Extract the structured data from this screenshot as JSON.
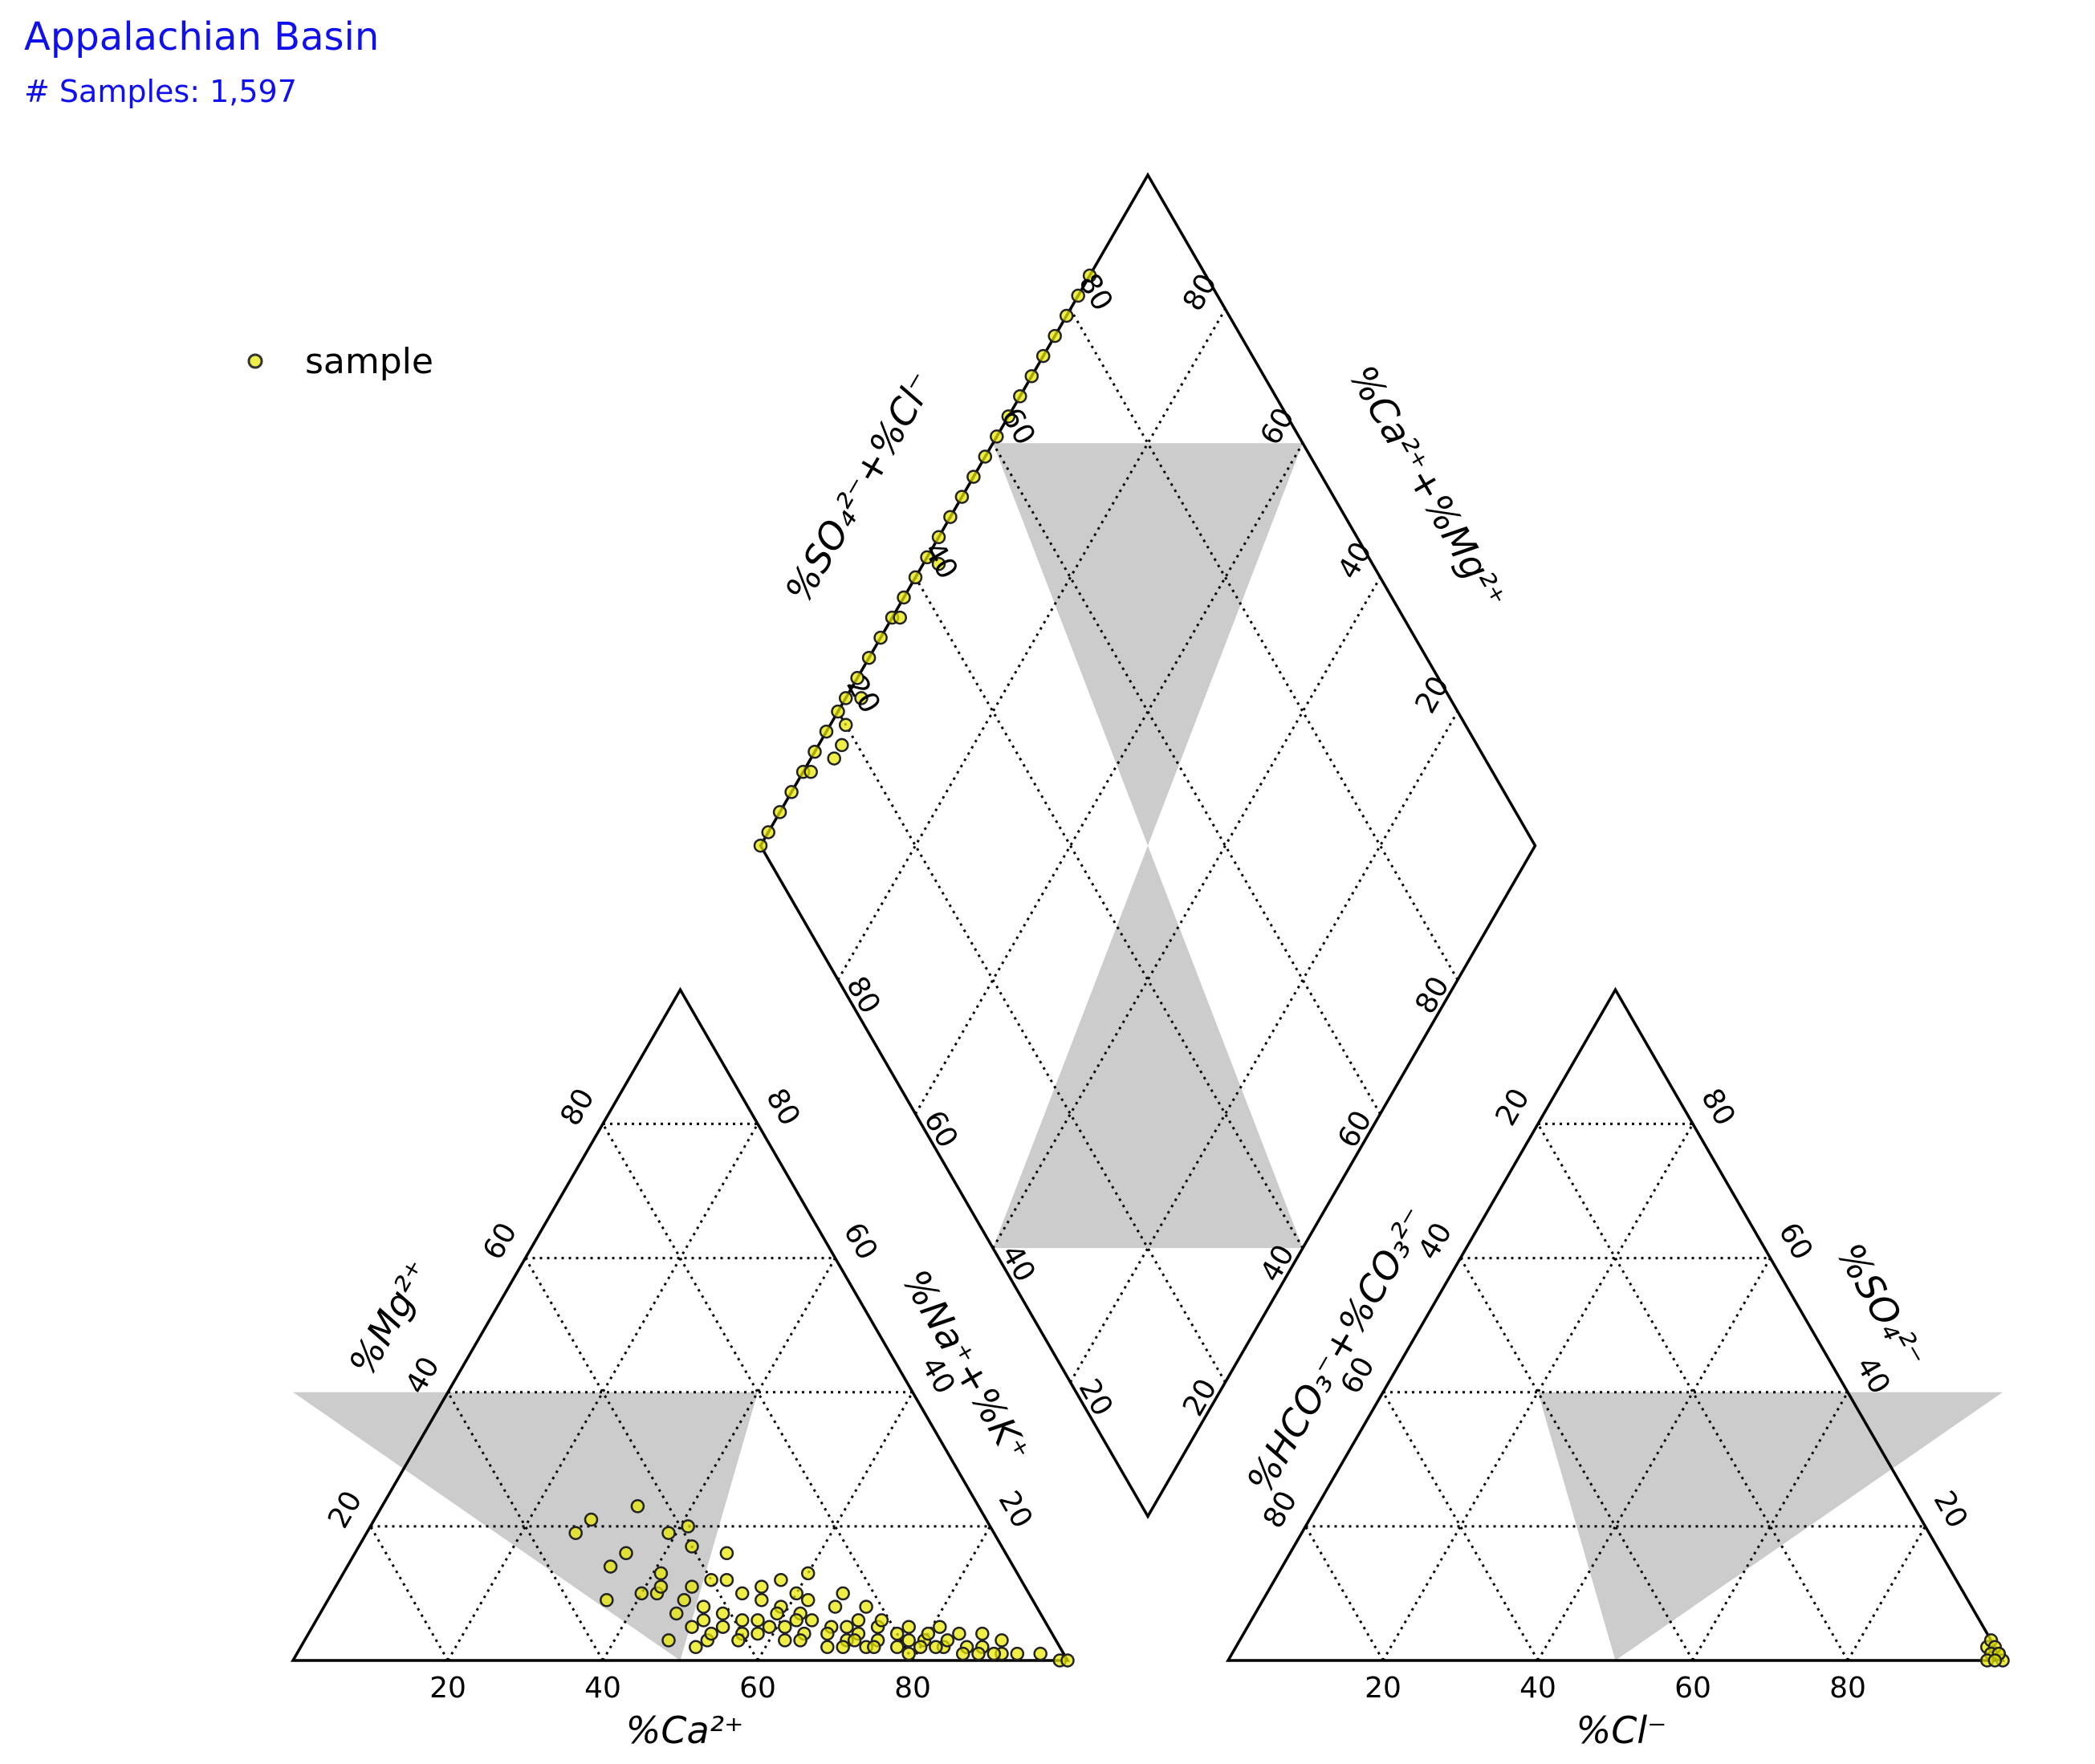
{
  "header": {
    "title": "Appalachian Basin",
    "subtitle": "# Samples: 1,597"
  },
  "chart_data": {
    "type": "scatter",
    "kind": "piper-diagram",
    "legend": {
      "label": "sample",
      "placement": "top-left",
      "marker_color": "#e8e800",
      "marker_edge": "#333333"
    },
    "colors": {
      "shade": "#cccccc",
      "marker_fill": "#e8e800",
      "marker_edge": "#222222"
    },
    "grid": true,
    "tick_labels": [
      "20",
      "40",
      "60",
      "80"
    ],
    "axes": {
      "cation_bottom": "%Ca²⁺",
      "cation_left": "%Mg²⁺",
      "cation_right": "%Na⁺+%K⁺",
      "anion_bottom": "%Cl⁻",
      "anion_left": "%HCO₃⁻+%CO₃²⁻",
      "anion_right": "%SO₄²⁻",
      "diamond_upper_left": "%SO₄²⁻+%Cl⁻",
      "diamond_upper_right": "%Ca²⁺+%Mg²⁺"
    },
    "cation_samples": {
      "columns": [
        "ca_pct",
        "mg_pct",
        "na_k_pct"
      ],
      "points": [
        [
          44,
          23,
          33
        ],
        [
          42,
          19,
          39
        ],
        [
          40,
          17,
          43
        ],
        [
          46,
          13,
          41
        ],
        [
          38,
          12,
          50
        ],
        [
          35,
          9,
          56
        ],
        [
          33,
          8,
          59
        ],
        [
          31,
          7,
          62
        ],
        [
          30,
          6,
          64
        ],
        [
          28,
          5,
          67
        ],
        [
          26,
          5,
          69
        ],
        [
          25,
          4,
          71
        ],
        [
          24,
          6,
          70
        ],
        [
          22,
          5,
          73
        ],
        [
          20,
          4,
          76
        ],
        [
          19,
          3,
          78
        ],
        [
          17,
          3,
          80
        ],
        [
          15,
          2,
          83
        ],
        [
          14,
          3,
          83
        ],
        [
          12,
          2,
          86
        ],
        [
          10,
          2,
          88
        ],
        [
          8,
          1,
          91
        ],
        [
          6,
          1,
          93
        ],
        [
          3,
          1,
          96
        ],
        [
          1,
          0,
          99
        ],
        [
          0,
          0,
          100
        ],
        [
          48,
          10,
          42
        ],
        [
          45,
          9,
          46
        ],
        [
          43,
          8,
          49
        ],
        [
          41,
          7,
          52
        ],
        [
          39,
          6,
          55
        ],
        [
          37,
          6,
          57
        ],
        [
          36,
          5,
          59
        ],
        [
          34,
          5,
          61
        ],
        [
          32,
          4,
          64
        ],
        [
          29,
          4,
          67
        ],
        [
          27,
          3,
          70
        ],
        [
          23,
          3,
          74
        ],
        [
          21,
          2,
          77
        ],
        [
          18,
          2,
          80
        ],
        [
          16,
          2,
          82
        ],
        [
          13,
          1,
          86
        ],
        [
          11,
          1,
          88
        ],
        [
          9,
          1,
          90
        ],
        [
          47,
          7,
          46
        ],
        [
          44,
          6,
          50
        ],
        [
          42,
          5,
          53
        ],
        [
          40,
          4,
          56
        ],
        [
          38,
          4,
          58
        ],
        [
          35,
          3,
          62
        ],
        [
          33,
          3,
          64
        ],
        [
          30,
          2,
          68
        ],
        [
          28,
          2,
          70
        ],
        [
          25,
          2,
          73
        ],
        [
          20,
          1,
          79
        ],
        [
          50,
          3,
          47
        ],
        [
          47,
          2,
          51
        ],
        [
          45,
          3,
          52
        ],
        [
          52,
          14,
          34
        ],
        [
          49,
          16,
          35
        ],
        [
          37,
          10,
          53
        ],
        [
          34,
          11,
          55
        ],
        [
          31,
          12,
          57
        ],
        [
          29,
          9,
          62
        ],
        [
          26,
          8,
          66
        ],
        [
          24,
          10,
          66
        ],
        [
          22,
          8,
          70
        ],
        [
          36,
          16,
          48
        ],
        [
          40,
          12,
          48
        ],
        [
          43,
          11,
          46
        ],
        [
          47,
          11,
          42
        ],
        [
          50,
          10,
          40
        ],
        [
          27,
          13,
          60
        ],
        [
          30,
          10,
          60
        ],
        [
          54,
          19,
          27
        ],
        [
          51,
          21,
          28
        ],
        [
          55,
          9,
          36
        ],
        [
          39,
          20,
          41
        ],
        [
          34,
          7,
          59
        ],
        [
          32,
          6,
          62
        ],
        [
          26,
          3,
          71
        ],
        [
          24,
          2,
          74
        ],
        [
          21,
          6,
          73
        ],
        [
          18,
          5,
          77
        ],
        [
          16,
          4,
          80
        ],
        [
          14,
          5,
          81
        ],
        [
          12,
          4,
          84
        ],
        [
          7,
          3,
          90
        ],
        [
          9,
          4,
          87
        ],
        [
          41,
          3,
          56
        ],
        [
          46,
          5,
          49
        ],
        [
          44,
          4,
          52
        ]
      ]
    },
    "anion_samples": {
      "columns": [
        "hco3_co3_pct",
        "cl_pct",
        "so4_pct"
      ],
      "points": [
        [
          0,
          99,
          1
        ],
        [
          1,
          97,
          2
        ],
        [
          0,
          97,
          3
        ],
        [
          0,
          98,
          2
        ],
        [
          1,
          98,
          1
        ],
        [
          0,
          100,
          0
        ],
        [
          2,
          98,
          0
        ],
        [
          0,
          99,
          1
        ],
        [
          1,
          99,
          0
        ]
      ]
    },
    "diamond_samples": {
      "columns": [
        "so4_cl_pct",
        "ca_mg_pct"
      ],
      "points": [
        [
          100,
          0
        ],
        [
          100,
          2
        ],
        [
          100,
          5
        ],
        [
          100,
          8
        ],
        [
          100,
          11
        ],
        [
          100,
          14
        ],
        [
          100,
          17
        ],
        [
          100,
          20
        ],
        [
          100,
          22
        ],
        [
          100,
          25
        ],
        [
          100,
          28
        ],
        [
          100,
          31
        ],
        [
          100,
          34
        ],
        [
          100,
          37
        ],
        [
          100,
          40
        ],
        [
          100,
          43
        ],
        [
          100,
          46
        ],
        [
          100,
          49
        ],
        [
          100,
          52
        ],
        [
          100,
          55
        ],
        [
          100,
          58
        ],
        [
          100,
          61
        ],
        [
          100,
          64
        ],
        [
          100,
          67
        ],
        [
          100,
          70
        ],
        [
          100,
          73
        ],
        [
          100,
          76
        ],
        [
          100,
          79
        ],
        [
          100,
          82
        ],
        [
          100,
          85
        ],
        [
          98,
          44
        ],
        [
          98,
          20
        ],
        [
          97,
          18
        ],
        [
          97,
          16
        ],
        [
          98,
          24
        ],
        [
          99,
          35
        ],
        [
          99,
          12
        ]
      ]
    }
  }
}
